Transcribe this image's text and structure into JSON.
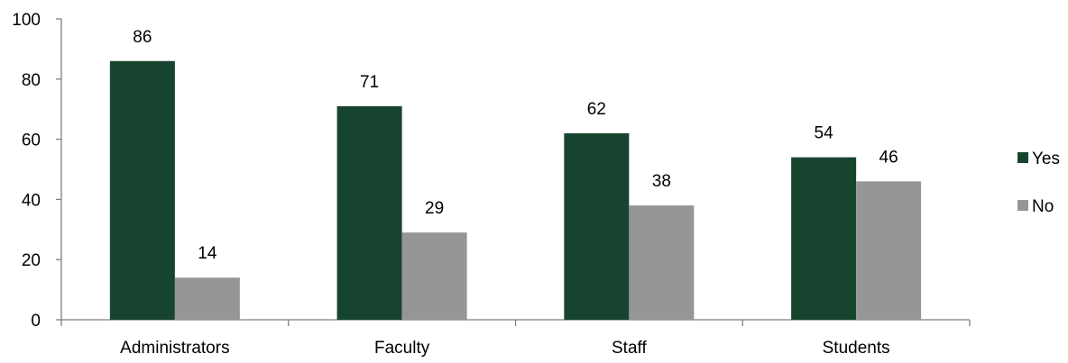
{
  "chart_data": {
    "type": "bar",
    "categories": [
      "Administrators",
      "Faculty",
      "Staff",
      "Students"
    ],
    "series": [
      {
        "name": "Yes",
        "values": [
          86,
          71,
          62,
          54
        ],
        "color": "#17442F"
      },
      {
        "name": "No",
        "values": [
          14,
          29,
          38,
          46
        ],
        "color": "#969696"
      }
    ],
    "ylim": [
      0,
      100
    ],
    "yticks": [
      0,
      20,
      40,
      60,
      80,
      100
    ],
    "grid": false,
    "legend_position": "right",
    "data_labels": true
  }
}
